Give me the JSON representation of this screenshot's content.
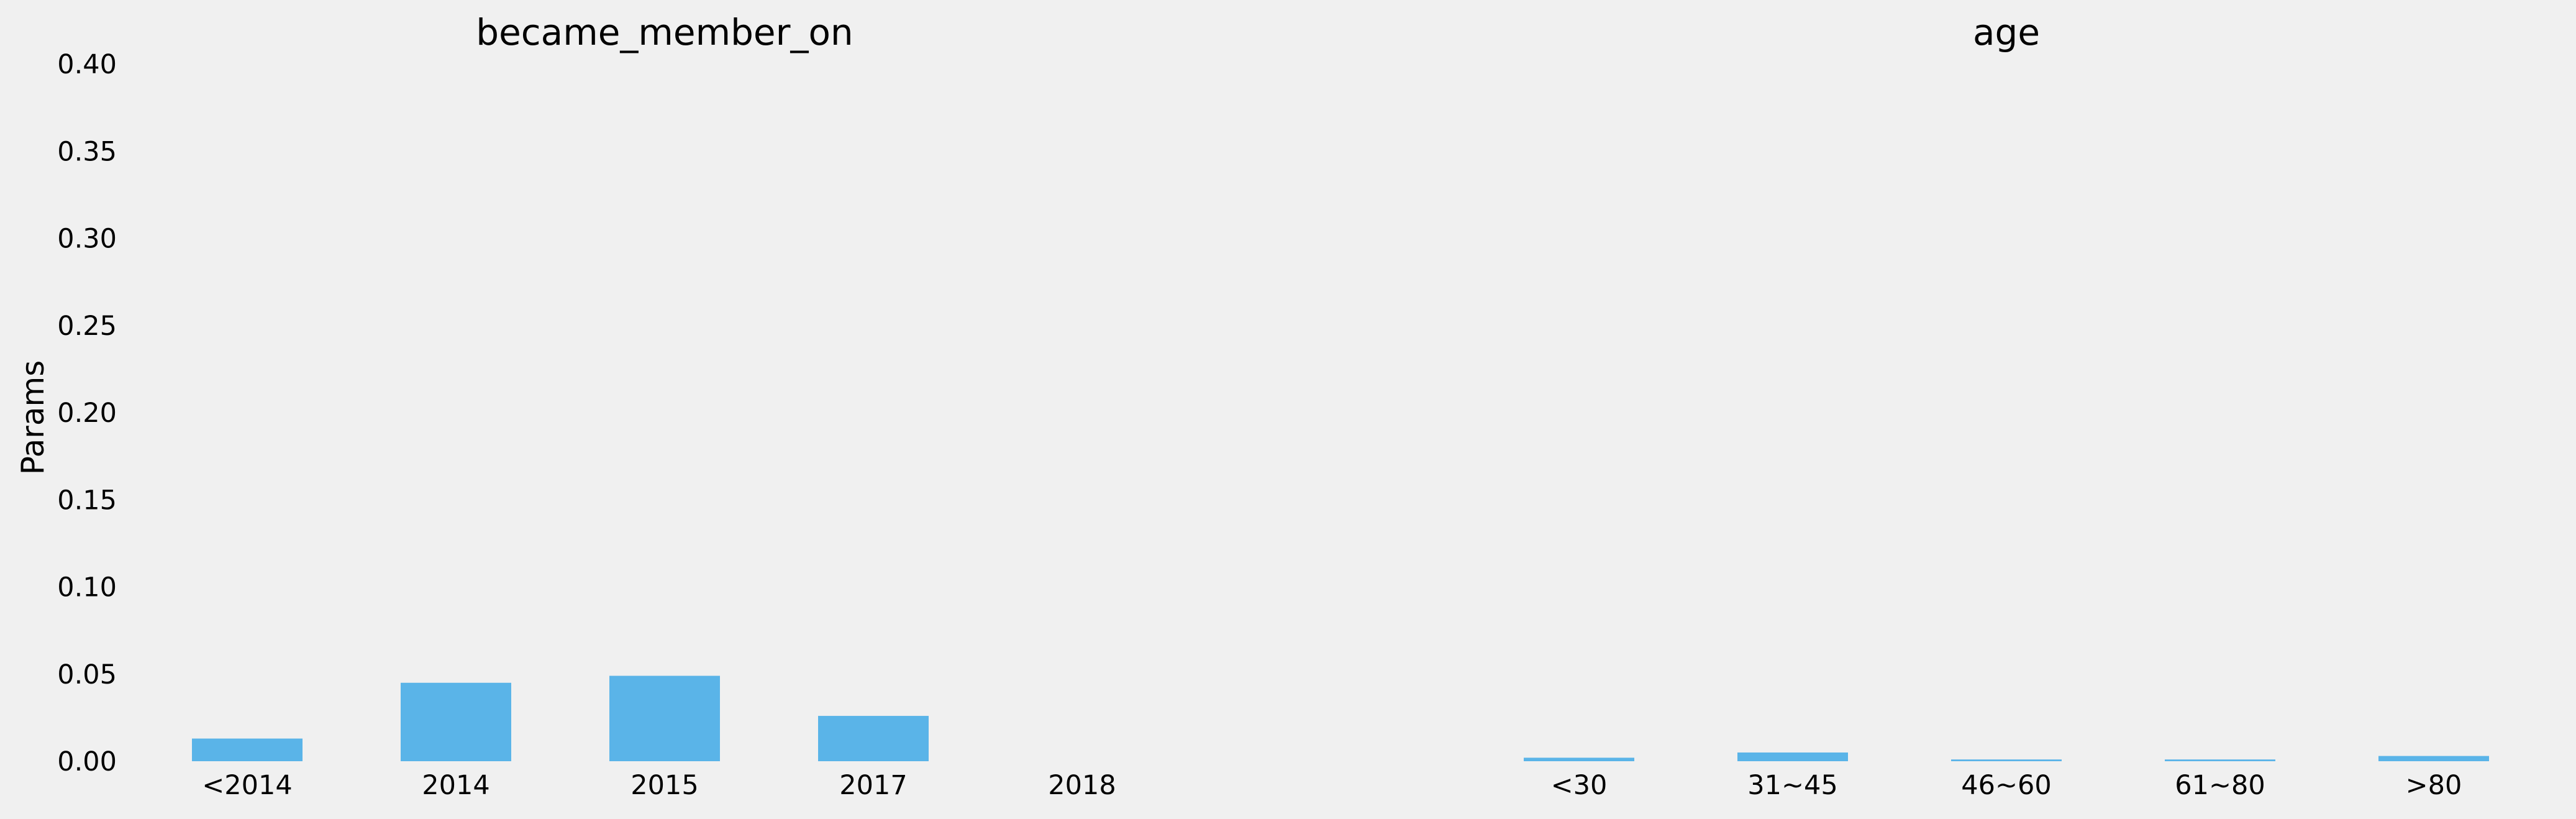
{
  "chart_data": {
    "type": "bar",
    "ylabel": "Params",
    "ylim": [
      0,
      0.4
    ],
    "yticks": [
      "0.00",
      "0.05",
      "0.10",
      "0.15",
      "0.20",
      "0.25",
      "0.30",
      "0.35",
      "0.40"
    ],
    "grid": false,
    "bar_color": "#5ab4e8",
    "background": "#f0f0f0",
    "panels": [
      {
        "title": "became_member_on",
        "categories": [
          "<2014",
          "2014",
          "2015",
          "2017",
          "2018"
        ],
        "values": [
          0.013,
          0.045,
          0.049,
          0.026,
          0.0
        ]
      },
      {
        "title": "age",
        "categories": [
          "<30",
          "31~45",
          "46~60",
          "61~80",
          ">80"
        ],
        "values": [
          0.002,
          0.005,
          0.001,
          0.001,
          0.003
        ]
      }
    ]
  }
}
